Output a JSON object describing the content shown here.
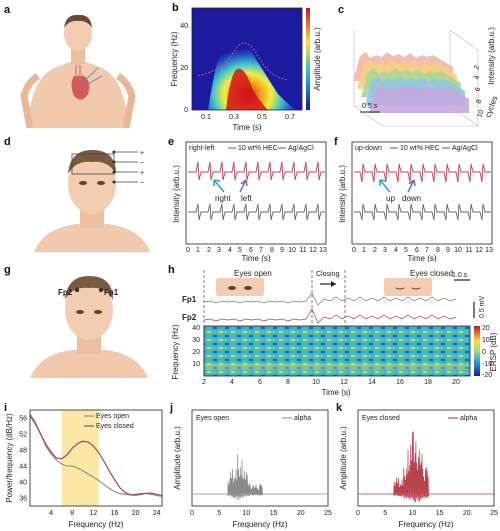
{
  "panels": {
    "a": "a",
    "b": "b",
    "c": "c",
    "d": "d",
    "e": "e",
    "f": "f",
    "g": "g",
    "h": "h",
    "i": "i",
    "j": "j",
    "k": "k"
  },
  "b": {
    "ylabel": "Frequency (Hz)",
    "xlabel": "Time (s)",
    "colorbar_label": "Amplitude (arb.u.)",
    "yticks": [
      "0",
      "20",
      "40"
    ],
    "xticks": [
      "0.1",
      "0.3",
      "0.5",
      "0.7"
    ]
  },
  "c": {
    "zlabel": "Intensity (arb.u.)",
    "scale": "0.5 s",
    "axis_label": "cycles",
    "cycle_ticks": [
      "2",
      "4",
      "6",
      "8",
      "10"
    ]
  },
  "e": {
    "legend_a": "right-left",
    "legend_b": "10 wt% HEC",
    "legend_c": "Ag/AgCl",
    "ylabel": "Intensity (arb.u.)",
    "xlabel": "Time (s)",
    "ann1": "right",
    "ann2": "left",
    "xticks": [
      "0",
      "1",
      "2",
      "3",
      "4",
      "5",
      "6",
      "7",
      "8",
      "9",
      "10",
      "11",
      "12",
      "13"
    ]
  },
  "f": {
    "legend_a": "up-down",
    "legend_b": "10 wt% HEC",
    "legend_c": "Ag/AgCl",
    "ylabel": "Intensity (arb.u.)",
    "xlabel": "Time (s)",
    "ann1": "up",
    "ann2": "down",
    "xticks": [
      "0",
      "1",
      "2",
      "3",
      "4",
      "5",
      "6",
      "7",
      "8",
      "9",
      "10",
      "11",
      "12",
      "13"
    ]
  },
  "g": {
    "e1": "Fp2",
    "e2": "Fp1"
  },
  "h": {
    "open": "Eyes open",
    "closing": "Closing",
    "closed": "Eyes closed",
    "ch1": "Fp1",
    "ch2": "Fp2",
    "scale_t": "1.0 s",
    "scale_v": "0.5 mV",
    "ylabel": "Frequency (Hz)",
    "xlabel": "Time (s)",
    "cbar_label": "ERSP (dB)",
    "yticks": [
      "10",
      "20",
      "30",
      "40"
    ],
    "xticks": [
      "2",
      "4",
      "6",
      "8",
      "10",
      "12",
      "14",
      "16",
      "18",
      "20"
    ],
    "cbar_ticks": [
      "20",
      "10",
      "0",
      "-10",
      "-20"
    ]
  },
  "i": {
    "ylabel": "Power/frequency (dB/Hz)",
    "xlabel": "Frequency (Hz)",
    "legend1": "Eyes open",
    "legend2": "Eyes closed",
    "yticks": [
      "56",
      "52",
      "48",
      "44",
      "40",
      "36"
    ],
    "xticks": [
      "4",
      "8",
      "12",
      "16",
      "20",
      "24"
    ]
  },
  "j": {
    "title": "Eyes open",
    "legend": "alpha",
    "ylabel": "Amplitude (arb.u.)",
    "xlabel": "Frequency (Hz)",
    "xticks": [
      "0",
      "5",
      "10",
      "15",
      "20",
      "25"
    ]
  },
  "k": {
    "title": "Eyes closed",
    "legend": "alpha",
    "ylabel": "Amplitude (arb.u.)",
    "xlabel": "Frequency (Hz)",
    "xticks": [
      "0",
      "5",
      "10",
      "15",
      "20",
      "25"
    ]
  },
  "chart_data": [
    {
      "type": "line",
      "id": "i",
      "xlabel": "Frequency (Hz)",
      "ylabel": "Power/frequency (dB/Hz)",
      "xlim": [
        0,
        25
      ],
      "ylim": [
        34,
        58
      ],
      "series": [
        {
          "name": "Eyes open",
          "x": [
            0,
            1,
            2,
            3,
            4,
            5,
            6,
            7,
            8,
            9,
            10,
            11,
            12,
            13,
            14,
            15,
            16,
            17,
            18,
            19,
            20,
            21,
            22,
            23,
            24,
            25
          ],
          "y": [
            57,
            55,
            52,
            49,
            47,
            45.5,
            44.5,
            44,
            44,
            43.5,
            42.8,
            42,
            41.2,
            40.4,
            39.4,
            38.4,
            37.6,
            37.1,
            36.9,
            36.8,
            37,
            37.1,
            37.1,
            36.9,
            36.6,
            36.4
          ]
        },
        {
          "name": "Eyes closed",
          "x": [
            0,
            1,
            2,
            3,
            4,
            5,
            6,
            7,
            8,
            9,
            10,
            11,
            12,
            13,
            14,
            15,
            16,
            17,
            18,
            19,
            20,
            21,
            22,
            23,
            24,
            25
          ],
          "y": [
            56.5,
            54.5,
            52,
            49.5,
            47.5,
            46,
            45.8,
            46.8,
            48.4,
            49.6,
            50.2,
            50,
            49,
            47.4,
            45.2,
            42.8,
            40.6,
            38.6,
            37.4,
            36.8,
            36.7,
            36.9,
            37.2,
            37.2,
            36.9,
            36.6
          ]
        }
      ],
      "highlight": {
        "x": [
          6,
          13
        ],
        "color": "#fbe7a6"
      }
    },
    {
      "type": "line",
      "id": "j",
      "xlim": [
        0,
        25
      ],
      "note": "alpha-band amplitude spectrum, eyes open",
      "peak_x": 8.5,
      "peak_rel": 0.55,
      "band": [
        6.5,
        13
      ],
      "color": "#8a8a8a"
    },
    {
      "type": "line",
      "id": "k",
      "xlim": [
        0,
        25
      ],
      "note": "alpha-band amplitude spectrum, eyes closed",
      "peak_x": 10.5,
      "peak_rel": 0.95,
      "band": [
        6.5,
        13
      ],
      "color": "#b7434f"
    }
  ]
}
